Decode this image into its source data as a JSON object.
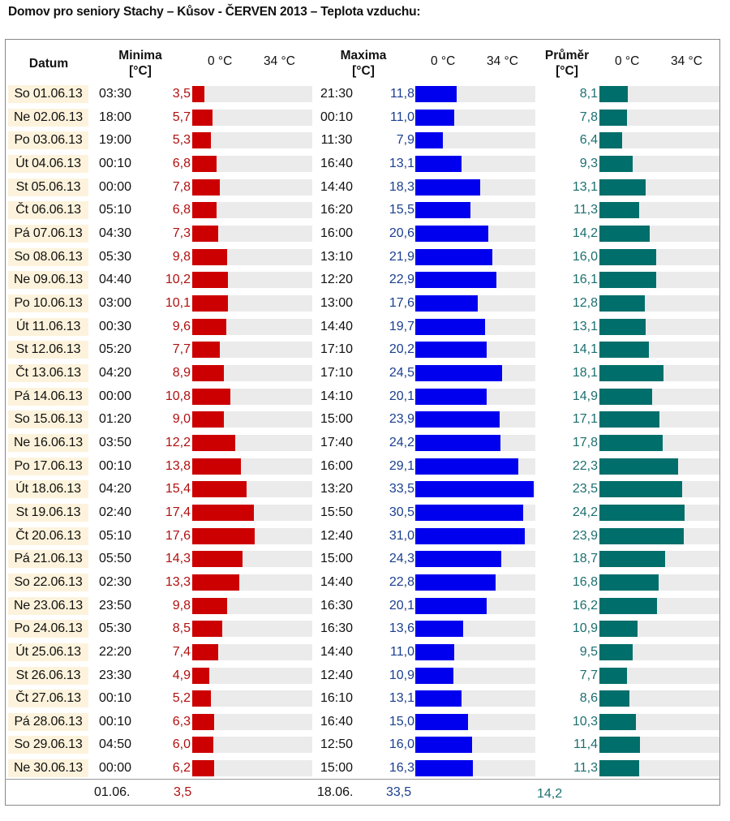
{
  "title": "Domov pro seniory Stachy – Kůsov - ČERVEN 2013 – Teplota vzduchu:",
  "headers": {
    "datum": "Datum",
    "minima_line1": "Minima",
    "minima_line2": "[°C]",
    "maxima_line1": "Maxima",
    "maxima_line2": "[°C]",
    "prumer_line1": "Průměr",
    "prumer_line2": "[°C]",
    "scale_zero": "0 °C",
    "scale_max": "34 °C"
  },
  "colors": {
    "min": "#cc0000",
    "max": "#0000ee",
    "avg": "#006e6a",
    "track": "#ebebeb",
    "date_bg": "#fdf3dc"
  },
  "chart_data": {
    "type": "bar",
    "xlim": [
      0,
      34
    ],
    "categories": [
      "So 01.06.13",
      "Ne 02.06.13",
      "Po 03.06.13",
      "Út 04.06.13",
      "St 05.06.13",
      "Čt 06.06.13",
      "Pá 07.06.13",
      "So 08.06.13",
      "Ne 09.06.13",
      "Po 10.06.13",
      "Út 11.06.13",
      "St 12.06.13",
      "Čt 13.06.13",
      "Pá 14.06.13",
      "So 15.06.13",
      "Ne 16.06.13",
      "Po 17.06.13",
      "Út 18.06.13",
      "St 19.06.13",
      "Čt 20.06.13",
      "Pá 21.06.13",
      "So 22.06.13",
      "Ne 23.06.13",
      "Po 24.06.13",
      "Út 25.06.13",
      "St 26.06.13",
      "Čt 27.06.13",
      "Pá 28.06.13",
      "So 29.06.13",
      "Ne 30.06.13"
    ],
    "min_times": [
      "03:30",
      "18:00",
      "19:00",
      "00:10",
      "00:00",
      "05:10",
      "04:30",
      "05:30",
      "04:40",
      "03:00",
      "00:30",
      "05:20",
      "04:20",
      "00:00",
      "01:20",
      "03:50",
      "00:10",
      "04:20",
      "02:40",
      "05:10",
      "05:50",
      "02:30",
      "23:50",
      "05:30",
      "22:20",
      "23:30",
      "00:10",
      "00:10",
      "04:50",
      "00:00"
    ],
    "min_values": [
      "3,5",
      "5,7",
      "5,3",
      "6,8",
      "7,8",
      "6,8",
      "7,3",
      "9,8",
      "10,2",
      "10,1",
      "9,6",
      "7,7",
      "8,9",
      "10,8",
      "9,0",
      "12,2",
      "13,8",
      "15,4",
      "17,4",
      "17,6",
      "14,3",
      "13,3",
      "9,8",
      "8,5",
      "7,4",
      "4,9",
      "5,2",
      "6,3",
      "6,0",
      "6,2"
    ],
    "max_times": [
      "21:30",
      "00:10",
      "11:30",
      "16:40",
      "14:40",
      "16:20",
      "16:00",
      "13:10",
      "12:20",
      "13:00",
      "14:40",
      "17:10",
      "17:10",
      "14:10",
      "15:00",
      "17:40",
      "16:00",
      "13:20",
      "15:50",
      "12:40",
      "15:00",
      "14:40",
      "16:30",
      "16:30",
      "14:40",
      "12:40",
      "16:10",
      "16:40",
      "12:50",
      "15:00"
    ],
    "max_values": [
      "11,8",
      "11,0",
      "7,9",
      "13,1",
      "18,3",
      "15,5",
      "20,6",
      "21,9",
      "22,9",
      "17,6",
      "19,7",
      "20,2",
      "24,5",
      "20,1",
      "23,9",
      "24,2",
      "29,1",
      "33,5",
      "30,5",
      "31,0",
      "24,3",
      "22,8",
      "20,1",
      "13,6",
      "11,0",
      "10,9",
      "13,1",
      "15,0",
      "16,0",
      "16,3"
    ],
    "avg_values": [
      "8,1",
      "7,8",
      "6,4",
      "9,3",
      "13,1",
      "11,3",
      "14,2",
      "16,0",
      "16,1",
      "12,8",
      "13,1",
      "14,1",
      "18,1",
      "14,9",
      "17,1",
      "17,8",
      "22,3",
      "23,5",
      "24,2",
      "23,9",
      "18,7",
      "16,8",
      "16,2",
      "10,9",
      "9,5",
      "7,7",
      "8,6",
      "10,3",
      "11,4",
      "11,3"
    ]
  },
  "footer": {
    "min_date": "01.06.",
    "min_value": "3,5",
    "max_date": "18.06.",
    "max_value": "33,5",
    "avg_value": "14,2"
  }
}
